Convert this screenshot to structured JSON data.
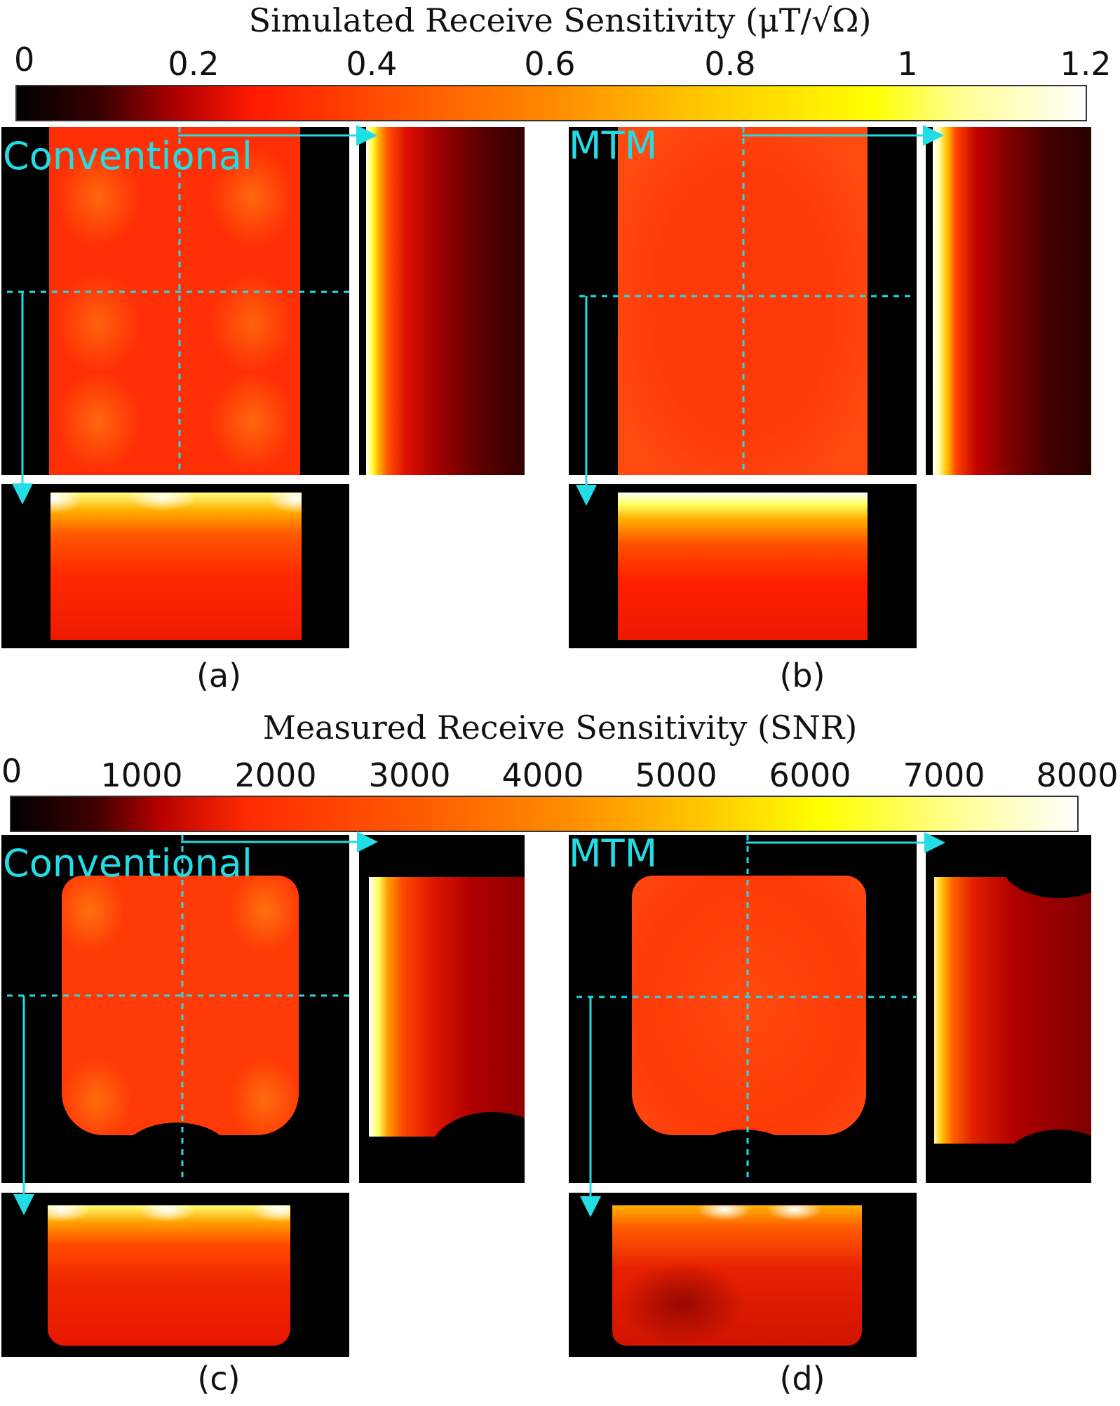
{
  "top": {
    "title": "Simulated Receive Sensitivity (μT/√Ω)",
    "ticks": [
      "0",
      "0.2",
      "0.4",
      "0.6",
      "0.8",
      "1",
      "1.2"
    ],
    "panel_left_label": "Conventional",
    "panel_right_label": "MTM",
    "caption_left": "(a)",
    "caption_right": "(b)"
  },
  "bottom": {
    "title": "Measured Receive Sensitivity (SNR)",
    "ticks": [
      "0",
      "1000",
      "2000",
      "3000",
      "4000",
      "5000",
      "6000",
      "7000",
      "8000"
    ],
    "panel_left_label": "Conventional",
    "panel_right_label": "MTM",
    "caption_left": "(c)",
    "caption_right": "(d)"
  },
  "colors": {
    "annotation": "#22dde6",
    "background": "#000000"
  }
}
